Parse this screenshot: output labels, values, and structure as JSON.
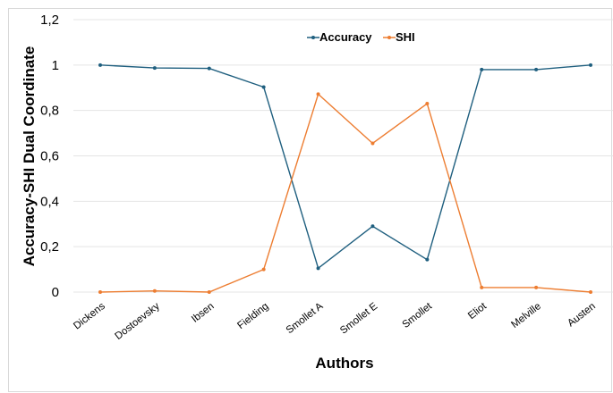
{
  "chart_data": {
    "type": "line",
    "categories": [
      "Dickens",
      "Dostoevsky",
      "Ibsen",
      "Fielding",
      "Smollet A",
      "Smollet E",
      "Smollet",
      "Eliot",
      "Melville",
      "Austen"
    ],
    "series": [
      {
        "name": "Accuracy",
        "color": "#1f5f7f",
        "values": [
          1.0,
          0.987,
          0.985,
          0.903,
          0.105,
          0.29,
          0.143,
          0.98,
          0.98,
          1.0
        ]
      },
      {
        "name": "SHI",
        "color": "#ed7d31",
        "values": [
          0.0,
          0.005,
          0.0,
          0.1,
          0.872,
          0.655,
          0.83,
          0.02,
          0.02,
          0.0
        ]
      }
    ],
    "y_ticks": [
      "0",
      "0,2",
      "0,4",
      "0,6",
      "0,8",
      "1",
      "1,2"
    ],
    "ylim": [
      0,
      1.2
    ],
    "xlabel": "Authors",
    "ylabel": "Accuracy-SHI Dual Coordinate",
    "grid": true,
    "legend_position": "top-center"
  }
}
